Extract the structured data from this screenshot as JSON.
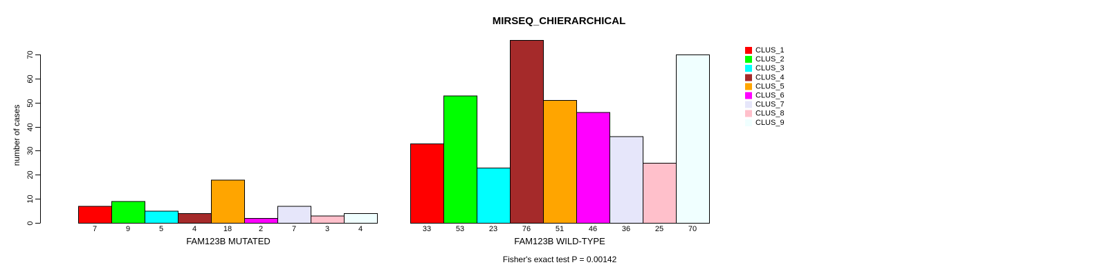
{
  "chart_data": {
    "type": "bar",
    "title": "MIRSEQ_CHIERARCHICAL",
    "ylabel": "number of cases",
    "xlabel": "",
    "categories": [
      "FAM123B MUTATED",
      "FAM123B WILD-TYPE"
    ],
    "series": [
      {
        "name": "CLUS_1",
        "color": "#FF0000",
        "values": [
          7,
          33
        ]
      },
      {
        "name": "CLUS_2",
        "color": "#00FF00",
        "values": [
          9,
          53
        ]
      },
      {
        "name": "CLUS_3",
        "color": "#00FFFF",
        "values": [
          5,
          23
        ]
      },
      {
        "name": "CLUS_4",
        "color": "#A52A2A",
        "values": [
          4,
          76
        ]
      },
      {
        "name": "CLUS_5",
        "color": "#FFA500",
        "values": [
          18,
          51
        ]
      },
      {
        "name": "CLUS_6",
        "color": "#FF00FF",
        "values": [
          2,
          46
        ]
      },
      {
        "name": "CLUS_7",
        "color": "#E6E6FA",
        "values": [
          7,
          36
        ]
      },
      {
        "name": "CLUS_8",
        "color": "#FFC0CB",
        "values": [
          3,
          25
        ]
      },
      {
        "name": "CLUS_9",
        "color": "#F0FFFF",
        "values": [
          4,
          70
        ]
      }
    ],
    "ylim": [
      0,
      70
    ],
    "yticks": [
      0,
      10,
      20,
      30,
      40,
      50,
      60,
      70
    ],
    "bar_value_labels": true,
    "grid": false,
    "legend_position": "right",
    "annotation": "Fisher's exact test P = 0.00142",
    "axis_color": "#000000",
    "bar_border_color": "#000000"
  }
}
